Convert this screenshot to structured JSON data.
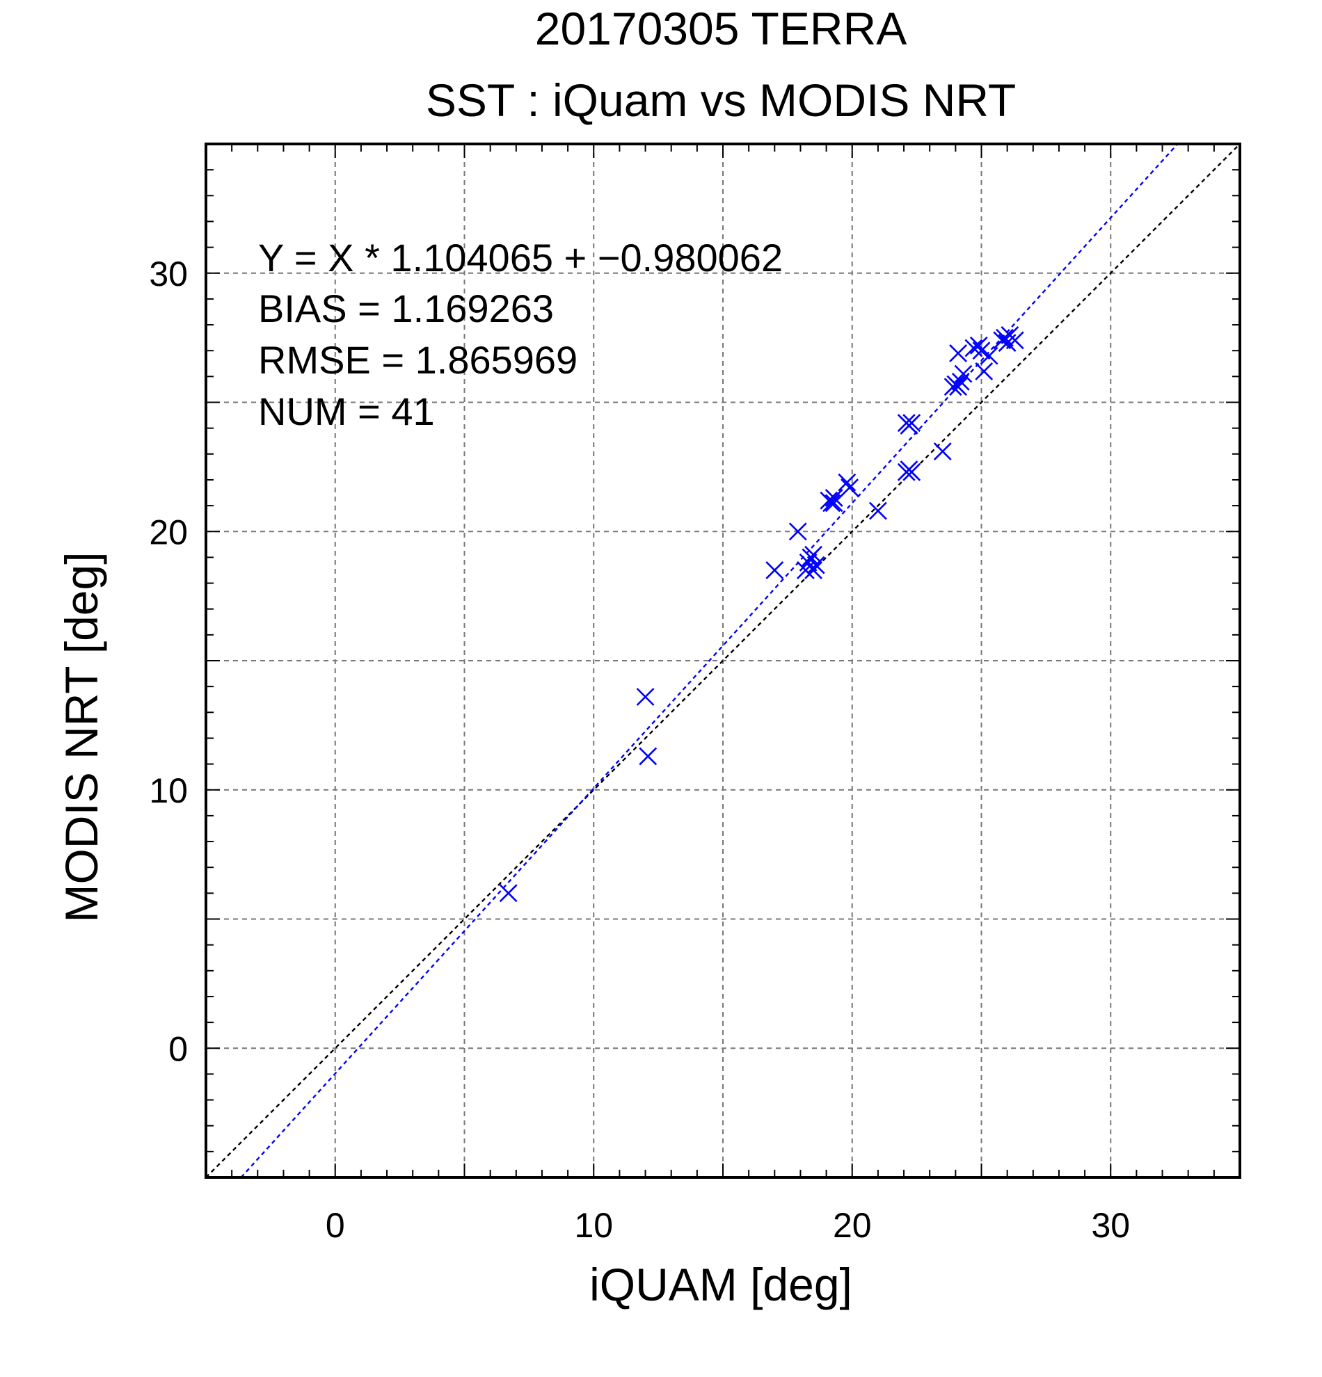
{
  "chart_data": {
    "type": "scatter",
    "title": "20170305 TERRA",
    "subtitle": "SST : iQuam vs MODIS NRT",
    "xlabel": "iQUAM [deg]",
    "ylabel": "MODIS NRT [deg]",
    "xlim": [
      -5,
      35
    ],
    "ylim": [
      -5,
      35
    ],
    "x_ticks": [
      0,
      10,
      20,
      30
    ],
    "y_ticks": [
      0,
      10,
      20,
      30
    ],
    "x_tick_labels": [
      "0",
      "10",
      "20",
      "30"
    ],
    "y_tick_labels": [
      "0",
      "10",
      "20",
      "30"
    ],
    "grid": true,
    "grid_step": 5,
    "minor_tick_step": 1,
    "colors": {
      "points": "#0000ff",
      "fit_line": "#0000ff",
      "identity_line": "#000000",
      "grid": "#777777"
    },
    "stats": {
      "equation": "Y = X * 1.104065 + −0.980062",
      "bias": "BIAS = 1.169263",
      "rmse": "RMSE = 1.865969",
      "num": "NUM = 41"
    },
    "fit_line": {
      "slope": 1.104065,
      "intercept": -0.980062
    },
    "identity_line": {
      "slope": 1,
      "intercept": 0
    },
    "series": [
      {
        "marker": "x",
        "points": [
          [
            6.7,
            6.0
          ],
          [
            12.0,
            13.6
          ],
          [
            12.1,
            11.3
          ],
          [
            17.0,
            18.5
          ],
          [
            17.9,
            20.0
          ],
          [
            18.2,
            18.5
          ],
          [
            18.3,
            18.8
          ],
          [
            18.4,
            19.0
          ],
          [
            18.5,
            18.5
          ],
          [
            18.5,
            19.1
          ],
          [
            18.6,
            18.7
          ],
          [
            19.1,
            21.2
          ],
          [
            19.2,
            21.1
          ],
          [
            19.3,
            21.3
          ],
          [
            19.3,
            21.1
          ],
          [
            19.8,
            21.9
          ],
          [
            19.9,
            21.7
          ],
          [
            21.0,
            20.8
          ],
          [
            22.1,
            22.3
          ],
          [
            22.2,
            22.4
          ],
          [
            22.3,
            22.3
          ],
          [
            22.1,
            24.2
          ],
          [
            22.2,
            24.1
          ],
          [
            22.3,
            24.2
          ],
          [
            23.5,
            23.1
          ],
          [
            23.9,
            25.6
          ],
          [
            24.0,
            25.7
          ],
          [
            24.1,
            25.6
          ],
          [
            24.2,
            25.8
          ],
          [
            24.1,
            26.9
          ],
          [
            24.3,
            26.1
          ],
          [
            24.7,
            27.1
          ],
          [
            24.9,
            27.2
          ],
          [
            25.0,
            27.0
          ],
          [
            25.1,
            26.2
          ],
          [
            25.3,
            26.8
          ],
          [
            25.8,
            27.4
          ],
          [
            25.9,
            27.5
          ],
          [
            26.0,
            27.3
          ],
          [
            26.1,
            27.6
          ],
          [
            26.3,
            27.4
          ]
        ]
      }
    ]
  }
}
